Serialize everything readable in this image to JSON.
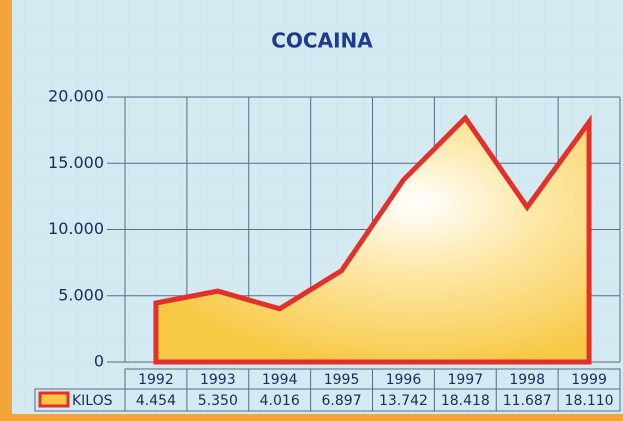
{
  "chart_data": {
    "type": "area",
    "title": "COCAINA",
    "categories": [
      "1992",
      "1993",
      "1994",
      "1995",
      "1996",
      "1997",
      "1998",
      "1999"
    ],
    "series": [
      {
        "name": "KILOS",
        "color": "#e3302a",
        "values": [
          4454,
          5350,
          4016,
          6897,
          13742,
          18418,
          11687,
          18110
        ],
        "value_labels": [
          "4.454",
          "5.350",
          "4.016",
          "6.897",
          "13.742",
          "18.418",
          "11.687",
          "18.110"
        ]
      }
    ],
    "ylim": [
      0,
      20000
    ],
    "yticks": [
      0,
      {
        "value": 5000,
        "label": "5.000"
      },
      {
        "value": 10000,
        "label": "10.000"
      },
      {
        "value": 15000,
        "label": "15.000"
      },
      {
        "value": 20000,
        "label": "20.000"
      }
    ],
    "grid": true
  }
}
